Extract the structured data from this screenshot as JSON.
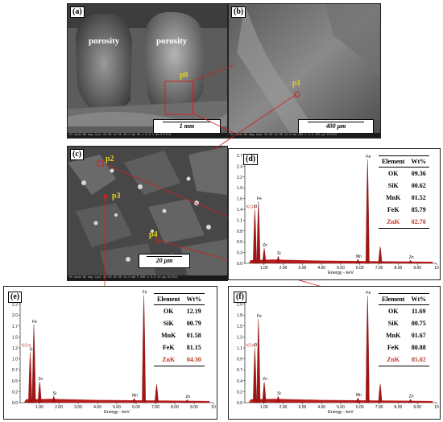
{
  "panels": {
    "a": {
      "label": "(a)",
      "porosity_left": "porosity",
      "porosity_right": "porosity",
      "point": "p0",
      "scale": "1 mm",
      "info": "HV mode WD mag spot 20.00 kV SE 10.9 mm 80 x 5.0  1 mm KITECH"
    },
    "b": {
      "label": "(b)",
      "point": "p1",
      "scale": "400 μm",
      "info": "HV mode WD mag spot 20.00 kV SE 11.0 mm 300 x 5.0  400 μm KITECH"
    },
    "c": {
      "label": "(c)",
      "points": [
        "p2",
        "p3",
        "p4"
      ],
      "scale": "20 μm",
      "info": "HV mode WD mag spot 20.00 kV SE 11.0 mm 5 000 x 5.0  20 μm KITECH"
    }
  },
  "eds_table_header": {
    "element": "Element",
    "wt": "Wt%"
  },
  "chart_data": [
    {
      "type": "bar",
      "panel": "(d)",
      "xlabel": "Energy - keV",
      "ylabel": "KCnt",
      "xlim": [
        0,
        10
      ],
      "ylim": [
        0,
        2.7
      ],
      "yticks": [
        "0.0",
        "0.3",
        "0.5",
        "0.8",
        "1.1",
        "1.4",
        "1.6",
        "1.9",
        "2.2",
        "2.4",
        "2.7"
      ],
      "xticks": [
        "1.00",
        "2.00",
        "3.00",
        "4.00",
        "5.00",
        "6.00",
        "7.00",
        "8.00",
        "9.00",
        "10"
      ],
      "peaks": [
        {
          "label": "O",
          "x": 0.52,
          "y": 1.35
        },
        {
          "label": "Fe",
          "x": 0.71,
          "y": 1.55
        },
        {
          "label": "Zn",
          "x": 1.01,
          "y": 0.38
        },
        {
          "label": "Si",
          "x": 1.74,
          "y": 0.18
        },
        {
          "label": "Mn",
          "x": 5.9,
          "y": 0.1
        },
        {
          "label": "Fe",
          "x": 6.4,
          "y": 2.6
        },
        {
          "label": "",
          "x": 7.06,
          "y": 0.42
        },
        {
          "label": "Zn",
          "x": 8.64,
          "y": 0.08
        }
      ],
      "table": [
        {
          "element": "OK",
          "wt": "09.36"
        },
        {
          "element": "SiK",
          "wt": "00.62"
        },
        {
          "element": "MnK",
          "wt": "01.52"
        },
        {
          "element": "FeK",
          "wt": "85.79"
        },
        {
          "element": "ZnK",
          "wt": "02.70"
        }
      ]
    },
    {
      "type": "bar",
      "panel": "(e)",
      "xlabel": "Energy - keV",
      "ylabel": "KCnt",
      "xlim": [
        0,
        10
      ],
      "ylim": [
        0,
        2.5
      ],
      "yticks": [
        "0.0",
        "0.2",
        "0.5",
        "0.7",
        "1.0",
        "1.2",
        "1.5",
        "1.7",
        "2.0",
        "2.2",
        "2.5"
      ],
      "xticks": [
        "1.00",
        "2.00",
        "3.00",
        "4.00",
        "5.00",
        "6.00",
        "7.00",
        "8.00",
        "9.00",
        "10"
      ],
      "peaks": [
        {
          "label": "O",
          "x": 0.52,
          "y": 1.15
        },
        {
          "label": "Fe",
          "x": 0.71,
          "y": 1.78
        },
        {
          "label": "Zn",
          "x": 1.01,
          "y": 0.48
        },
        {
          "label": "Si",
          "x": 1.74,
          "y": 0.15
        },
        {
          "label": "Mn",
          "x": 5.9,
          "y": 0.1
        },
        {
          "label": "Fe",
          "x": 6.4,
          "y": 2.45
        },
        {
          "label": "",
          "x": 7.06,
          "y": 0.42
        },
        {
          "label": "Zn",
          "x": 8.64,
          "y": 0.07
        }
      ],
      "table": [
        {
          "element": "OK",
          "wt": "12.19"
        },
        {
          "element": "SiK",
          "wt": "00.79"
        },
        {
          "element": "MnK",
          "wt": "01.58"
        },
        {
          "element": "FeK",
          "wt": "81.15"
        },
        {
          "element": "ZnK",
          "wt": "04.30"
        }
      ]
    },
    {
      "type": "bar",
      "panel": "(f)",
      "xlabel": "Energy - keV",
      "ylabel": "KCnt",
      "xlim": [
        0,
        10
      ],
      "ylim": [
        0,
        2.2
      ],
      "yticks": [
        "0.0",
        "0.2",
        "0.4",
        "0.7",
        "0.9",
        "1.1",
        "1.3",
        "1.5",
        "1.8",
        "2.0",
        "2.2"
      ],
      "xticks": [
        "1.00",
        "2.00",
        "3.00",
        "4.00",
        "5.00",
        "6.00",
        "7.00",
        "8.00",
        "9.00",
        "10"
      ],
      "peaks": [
        {
          "label": "O",
          "x": 0.52,
          "y": 1.1
        },
        {
          "label": "Fe",
          "x": 0.71,
          "y": 1.68
        },
        {
          "label": "Zn",
          "x": 1.01,
          "y": 0.42
        },
        {
          "label": "Si",
          "x": 1.74,
          "y": 0.13
        },
        {
          "label": "Mn",
          "x": 5.9,
          "y": 0.1
        },
        {
          "label": "Fe",
          "x": 6.4,
          "y": 2.15
        },
        {
          "label": "",
          "x": 7.06,
          "y": 0.38
        },
        {
          "label": "Zn",
          "x": 8.64,
          "y": 0.07
        }
      ],
      "table": [
        {
          "element": "OK",
          "wt": "11.69"
        },
        {
          "element": "SiK",
          "wt": "00.75"
        },
        {
          "element": "MnK",
          "wt": "01.67"
        },
        {
          "element": "FeK",
          "wt": "80.88"
        },
        {
          "element": "ZnK",
          "wt": "05.02"
        }
      ]
    }
  ]
}
